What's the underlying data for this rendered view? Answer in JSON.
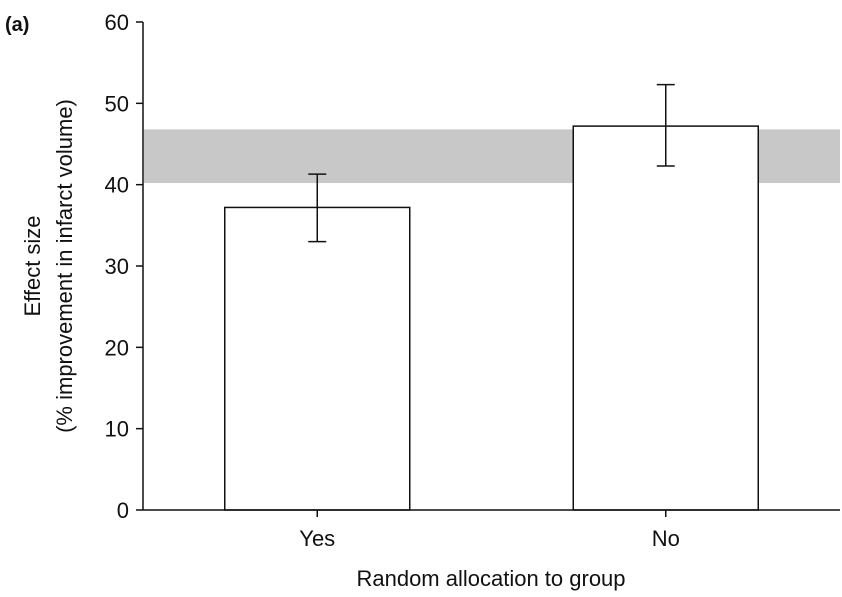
{
  "chart_data": {
    "type": "bar",
    "panel_label": "(a)",
    "categories": [
      "Yes",
      "No"
    ],
    "values": [
      37.2,
      47.2
    ],
    "error_bars": [
      {
        "low": 33.0,
        "high": 41.3
      },
      {
        "low": 42.3,
        "high": 52.3
      }
    ],
    "shaded_band": {
      "low": 40.2,
      "high": 46.8,
      "color": "#c8c8c8"
    },
    "xlabel": "Random allocation to group",
    "ylabel_line1": "Effect size",
    "ylabel_line2": "(% improvement in infarct volume)",
    "ylim": [
      0,
      60
    ],
    "yticks": [
      "0",
      "10",
      "20",
      "30",
      "40",
      "50",
      "60"
    ],
    "grid": false,
    "bar_fill": "#ffffff",
    "bar_stroke": "#111111"
  }
}
